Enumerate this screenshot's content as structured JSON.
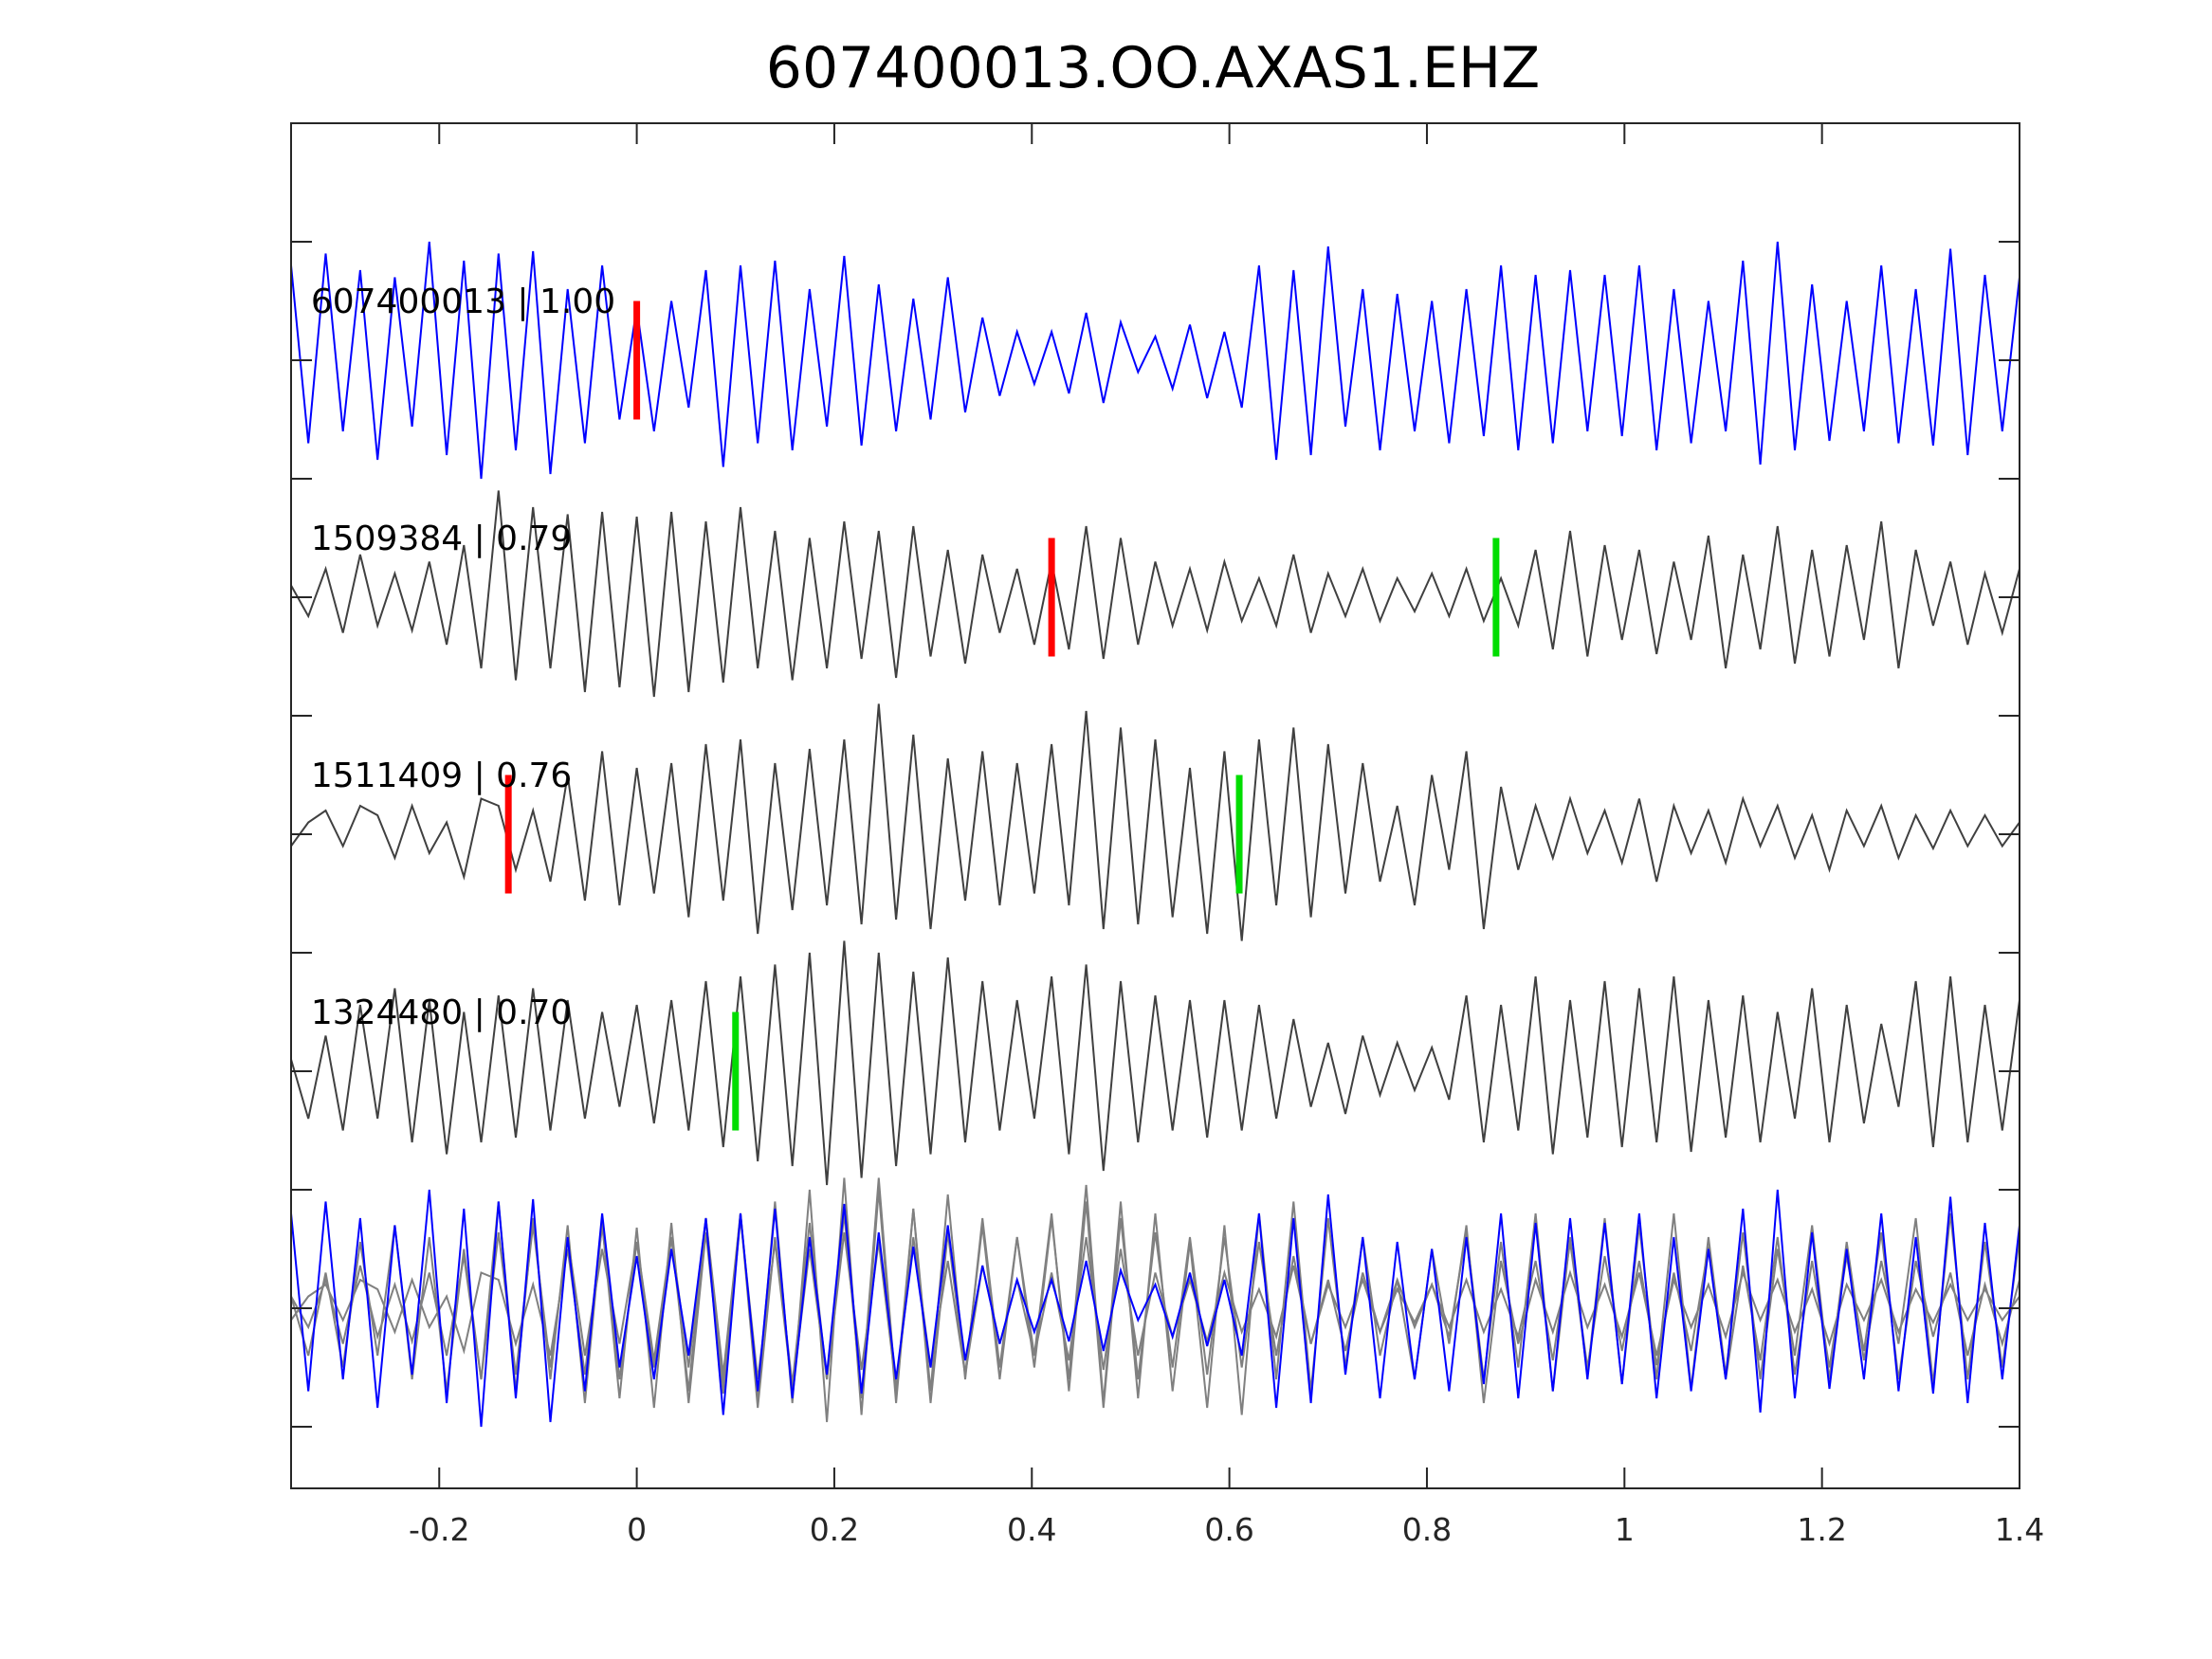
{
  "chart_data": {
    "type": "line",
    "title": "607400013.OO.AXAS1.EHZ",
    "xlabel": "",
    "ylabel": "",
    "xlim": [
      -0.35,
      1.4
    ],
    "ylim": [
      -4.76,
      1.0
    ],
    "x_ticks": [
      -0.2,
      0,
      0.2,
      0.4,
      0.6,
      0.8,
      1,
      1.2,
      1.4
    ],
    "x_tick_labels": [
      "-0.2",
      "0",
      "0.2",
      "0.4",
      "0.6",
      "0.8",
      "1",
      "1.2",
      "1.4"
    ],
    "y_ticks": [
      0.5,
      0,
      -0.5,
      -1,
      -1.5,
      -2,
      -2.5,
      -3,
      -3.5,
      -4,
      -4.5
    ],
    "grid": false,
    "sample_start": -0.35,
    "sample_step": 0.0175,
    "colors": {
      "template": "#0000ff",
      "other": "#404040",
      "overlay_other": "#808080",
      "pick_p": "#ff0000",
      "pick_s": "#00dd00"
    },
    "traces": [
      {
        "label": "607400013 | 1.00",
        "offset": 0,
        "color": "#0000ff",
        "picks": [
          {
            "type": "P",
            "time": 0.0
          }
        ],
        "values": [
          0.4,
          -0.35,
          0.45,
          -0.3,
          0.38,
          -0.42,
          0.35,
          -0.28,
          0.5,
          -0.4,
          0.42,
          -0.5,
          0.45,
          -0.38,
          0.46,
          -0.48,
          0.3,
          -0.35,
          0.4,
          -0.25,
          0.22,
          -0.3,
          0.25,
          -0.2,
          0.38,
          -0.45,
          0.4,
          -0.35,
          0.42,
          -0.38,
          0.3,
          -0.28,
          0.44,
          -0.36,
          0.32,
          -0.3,
          0.26,
          -0.25,
          0.35,
          -0.22,
          0.18,
          -0.15,
          0.12,
          -0.1,
          0.12,
          -0.14,
          0.2,
          -0.18,
          0.16,
          -0.05,
          0.1,
          -0.12,
          0.15,
          -0.16,
          0.12,
          -0.2,
          0.4,
          -0.42,
          0.38,
          -0.4,
          0.48,
          -0.28,
          0.3,
          -0.38,
          0.28,
          -0.3,
          0.25,
          -0.35,
          0.3,
          -0.32,
          0.4,
          -0.38,
          0.36,
          -0.35,
          0.38,
          -0.3,
          0.36,
          -0.32,
          0.4,
          -0.38,
          0.3,
          -0.35,
          0.25,
          -0.3,
          0.42,
          -0.44,
          0.5,
          -0.38,
          0.32,
          -0.34,
          0.25,
          -0.3,
          0.4,
          -0.35,
          0.3,
          -0.36,
          0.47,
          -0.4,
          0.36,
          -0.3,
          0.35
        ]
      },
      {
        "label": "1509384 | 0.79",
        "offset": -1,
        "color": "#404040",
        "picks": [
          {
            "type": "P",
            "time": 0.42
          },
          {
            "type": "S",
            "time": 0.87
          }
        ],
        "values": [
          0.05,
          -0.08,
          0.12,
          -0.15,
          0.18,
          -0.12,
          0.1,
          -0.14,
          0.15,
          -0.2,
          0.22,
          -0.3,
          0.45,
          -0.35,
          0.38,
          -0.3,
          0.35,
          -0.4,
          0.36,
          -0.38,
          0.34,
          -0.42,
          0.36,
          -0.4,
          0.32,
          -0.36,
          0.38,
          -0.3,
          0.28,
          -0.35,
          0.25,
          -0.3,
          0.32,
          -0.26,
          0.28,
          -0.34,
          0.3,
          -0.25,
          0.2,
          -0.28,
          0.18,
          -0.15,
          0.12,
          -0.2,
          0.15,
          -0.22,
          0.3,
          -0.26,
          0.25,
          -0.2,
          0.15,
          -0.12,
          0.12,
          -0.14,
          0.15,
          -0.1,
          0.08,
          -0.12,
          0.18,
          -0.15,
          0.1,
          -0.08,
          0.12,
          -0.1,
          0.08,
          -0.06,
          0.1,
          -0.08,
          0.12,
          -0.1,
          0.08,
          -0.12,
          0.2,
          -0.22,
          0.28,
          -0.25,
          0.22,
          -0.18,
          0.2,
          -0.24,
          0.15,
          -0.18,
          0.26,
          -0.3,
          0.18,
          -0.22,
          0.3,
          -0.28,
          0.2,
          -0.25,
          0.22,
          -0.18,
          0.32,
          -0.3,
          0.2,
          -0.12,
          0.15,
          -0.2,
          0.1,
          -0.15,
          0.12
        ]
      },
      {
        "label": "1511409 | 0.76",
        "offset": -2,
        "color": "#404040",
        "picks": [
          {
            "type": "P",
            "time": -0.13
          },
          {
            "type": "S",
            "time": 0.61
          }
        ],
        "values": [
          -0.05,
          0.05,
          0.1,
          -0.05,
          0.12,
          0.08,
          -0.1,
          0.12,
          -0.08,
          0.05,
          -0.18,
          0.15,
          0.12,
          -0.15,
          0.1,
          -0.2,
          0.25,
          -0.28,
          0.35,
          -0.3,
          0.28,
          -0.25,
          0.3,
          -0.35,
          0.38,
          -0.28,
          0.4,
          -0.42,
          0.3,
          -0.32,
          0.36,
          -0.3,
          0.4,
          -0.38,
          0.55,
          -0.36,
          0.42,
          -0.4,
          0.32,
          -0.28,
          0.35,
          -0.3,
          0.3,
          -0.25,
          0.38,
          -0.3,
          0.52,
          -0.4,
          0.45,
          -0.38,
          0.4,
          -0.35,
          0.28,
          -0.42,
          0.35,
          -0.45,
          0.4,
          -0.3,
          0.45,
          -0.35,
          0.38,
          -0.25,
          0.3,
          -0.2,
          0.12,
          -0.3,
          0.25,
          -0.15,
          0.35,
          -0.4,
          0.2,
          -0.15,
          0.12,
          -0.1,
          0.15,
          -0.08,
          0.1,
          -0.12,
          0.15,
          -0.2,
          0.12,
          -0.08,
          0.1,
          -0.12,
          0.15,
          -0.05,
          0.12,
          -0.1,
          0.08,
          -0.15,
          0.1,
          -0.05,
          0.12,
          -0.1,
          0.08,
          -0.06,
          0.1,
          -0.05,
          0.08,
          -0.05,
          0.05
        ]
      },
      {
        "label": "1324480 | 0.70",
        "offset": -3,
        "color": "#404040",
        "picks": [
          {
            "type": "S",
            "time": 0.1
          }
        ],
        "values": [
          0.05,
          -0.2,
          0.15,
          -0.25,
          0.28,
          -0.2,
          0.35,
          -0.3,
          0.3,
          -0.35,
          0.25,
          -0.3,
          0.32,
          -0.28,
          0.35,
          -0.25,
          0.3,
          -0.2,
          0.25,
          -0.15,
          0.28,
          -0.22,
          0.3,
          -0.25,
          0.38,
          -0.32,
          0.4,
          -0.38,
          0.45,
          -0.4,
          0.5,
          -0.48,
          0.55,
          -0.45,
          0.5,
          -0.4,
          0.42,
          -0.35,
          0.48,
          -0.3,
          0.38,
          -0.25,
          0.3,
          -0.2,
          0.4,
          -0.35,
          0.45,
          -0.42,
          0.38,
          -0.3,
          0.32,
          -0.25,
          0.3,
          -0.28,
          0.3,
          -0.25,
          0.28,
          -0.2,
          0.22,
          -0.15,
          0.12,
          -0.18,
          0.15,
          -0.1,
          0.12,
          -0.08,
          0.1,
          -0.12,
          0.32,
          -0.3,
          0.28,
          -0.25,
          0.4,
          -0.35,
          0.3,
          -0.28,
          0.38,
          -0.32,
          0.35,
          -0.3,
          0.4,
          -0.34,
          0.3,
          -0.28,
          0.32,
          -0.3,
          0.25,
          -0.2,
          0.35,
          -0.3,
          0.28,
          -0.22,
          0.2,
          -0.15,
          0.38,
          -0.32,
          0.4,
          -0.3,
          0.28,
          -0.25,
          0.3
        ]
      }
    ],
    "overlay": {
      "offset": -4,
      "description_order": [
        0,
        1,
        2,
        3
      ]
    }
  }
}
